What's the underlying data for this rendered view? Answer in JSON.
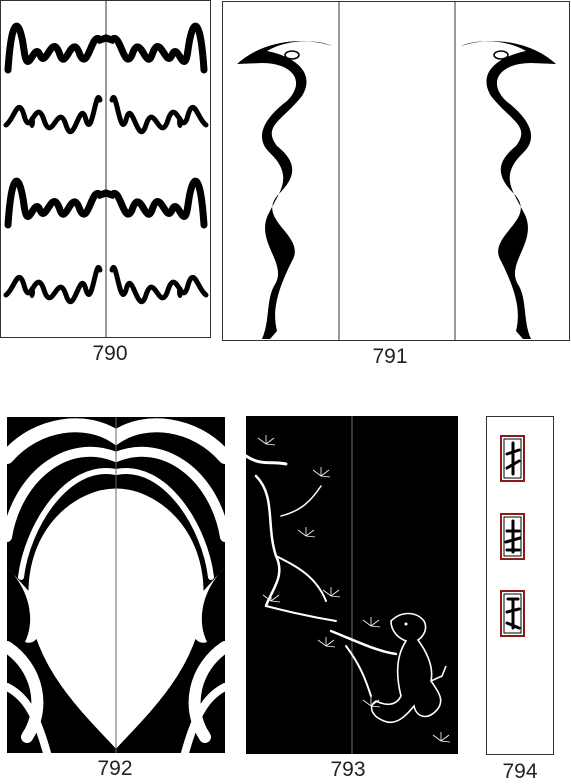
{
  "designs": [
    {
      "number": "790"
    },
    {
      "number": "791"
    },
    {
      "number": "792"
    },
    {
      "number": "793"
    },
    {
      "number": "794"
    }
  ],
  "colors": {
    "ink": "#000000",
    "paper": "#ffffff",
    "frame": "#8b1a1a",
    "line": "#333333"
  }
}
